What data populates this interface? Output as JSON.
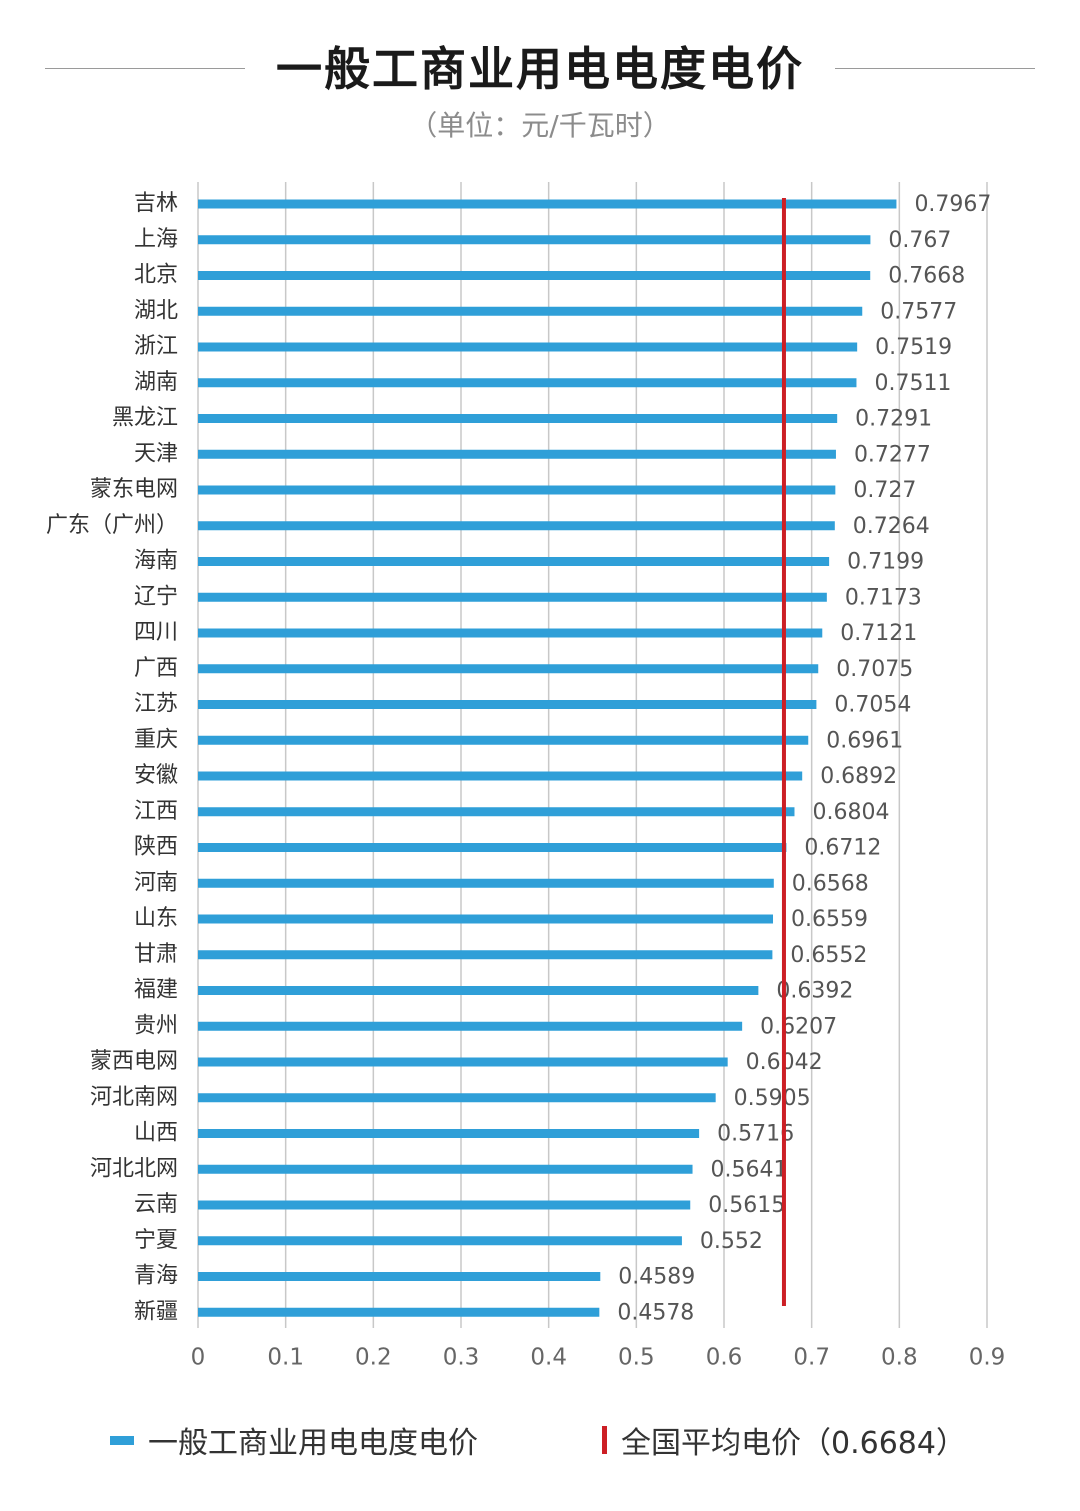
{
  "title": "一般工商业用电电度电价",
  "subtitle": "（单位：元/千瓦时）",
  "colors": {
    "bar": "#2f9fd8",
    "average_line": "#cc1f25",
    "grid": "#c8c8c8",
    "axis_text": "#666666",
    "category_text": "#333333"
  },
  "chart_data": {
    "type": "bar",
    "orientation": "horizontal",
    "categories": [
      "吉林",
      "上海",
      "北京",
      "湖北",
      "浙江",
      "湖南",
      "黑龙江",
      "天津",
      "蒙东电网",
      "广东（广州）",
      "海南",
      "辽宁",
      "四川",
      "广西",
      "江苏",
      "重庆",
      "安徽",
      "江西",
      "陕西",
      "河南",
      "山东",
      "甘肃",
      "福建",
      "贵州",
      "蒙西电网",
      "河北南网",
      "山西",
      "河北北网",
      "云南",
      "宁夏",
      "青海",
      "新疆"
    ],
    "series": [
      {
        "name": "一般工商业用电电度电价",
        "values": [
          0.7967,
          0.767,
          0.7668,
          0.7577,
          0.7519,
          0.7511,
          0.7291,
          0.7277,
          0.727,
          0.7264,
          0.7199,
          0.7173,
          0.7121,
          0.7075,
          0.7054,
          0.6961,
          0.6892,
          0.6804,
          0.6712,
          0.6568,
          0.6559,
          0.6552,
          0.6392,
          0.6207,
          0.6042,
          0.5905,
          0.5716,
          0.5641,
          0.5615,
          0.552,
          0.4589,
          0.4578
        ],
        "labels": [
          "0.7967",
          "0.767",
          "0.7668",
          "0.7577",
          "0.7519",
          "0.7511",
          "0.7291",
          "0.7277",
          "0.727",
          "0.7264",
          "0.7199",
          "0.7173",
          "0.7121",
          "0.7075",
          "0.7054",
          "0.6961",
          "0.6892",
          "0.6804",
          "0.6712",
          "0.6568",
          "0.6559",
          "0.6552",
          "0.6392",
          "0.6207",
          "0.6042",
          "0.5905",
          "0.5716",
          "0.5641",
          "0.5615",
          "0.552",
          "0.4589",
          "0.4578"
        ]
      }
    ],
    "reference_line": {
      "name": "全国平均电价（0.6684）",
      "value": 0.6684
    },
    "xlim": [
      0,
      0.9
    ],
    "xticks": [
      "0",
      "0.1",
      "0.2",
      "0.3",
      "0.4",
      "0.5",
      "0.6",
      "0.7",
      "0.8",
      "0.9"
    ],
    "grid": true,
    "legend_position": "bottom"
  },
  "legend": {
    "bar_label": "一般工商业用电电度电价",
    "line_label": "全国平均电价（0.6684）"
  }
}
